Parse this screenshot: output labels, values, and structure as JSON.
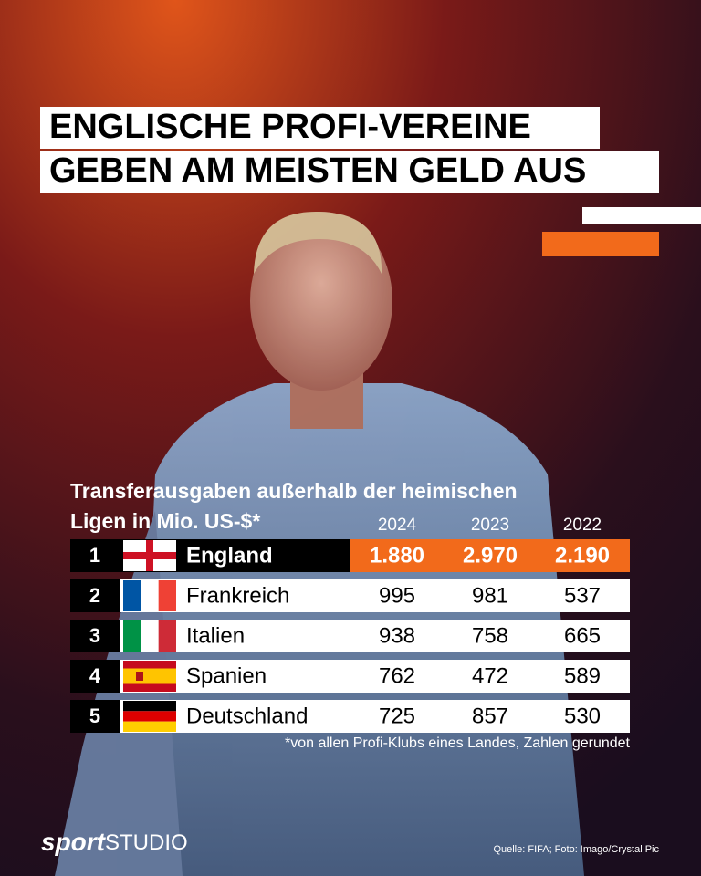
{
  "header": {
    "title_lines": [
      "ENGLISCHE PROFI-VEREINE",
      "GEBEN AM MEISTEN GELD AUS"
    ]
  },
  "table": {
    "caption_lines": [
      "Transferausgaben außerhalb der heimischen",
      "Ligen in Mio. US-$*"
    ],
    "columns": [
      "2024",
      "2023",
      "2022"
    ],
    "rows": [
      [
        "1",
        "England",
        "1.880",
        "2.970",
        "2.190"
      ],
      [
        "2",
        "Frankreich",
        "995",
        "981",
        "537"
      ],
      [
        "3",
        "Italien",
        "938",
        "758",
        "665"
      ],
      [
        "4",
        "Spanien",
        "762",
        "472",
        "589"
      ],
      [
        "5",
        "Deutschland",
        "725",
        "857",
        "530"
      ]
    ],
    "footnote": "*von allen Profi-Klubs eines Landes, Zahlen gerundet"
  },
  "footer": {
    "logo": [
      "sport",
      "STUDIO"
    ],
    "source": "Quelle: FIFA; Foto: Imago/Crystal Pic"
  }
}
